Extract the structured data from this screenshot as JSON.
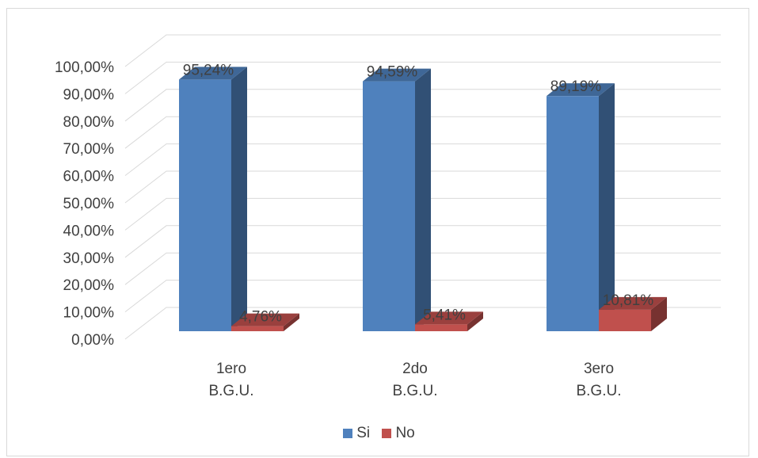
{
  "chart_data": {
    "type": "bar",
    "style": "3d-clustered-column",
    "categories": [
      "1ero\nB.G.U.",
      "2do\nB.G.U.",
      "3ero\nB.G.U."
    ],
    "series": [
      {
        "name": "Si",
        "color": "#4f81bd",
        "values": [
          95.24,
          94.59,
          89.19
        ],
        "labels": [
          "95,24%",
          "94,59%",
          "89,19%"
        ]
      },
      {
        "name": "No",
        "color": "#c0504d",
        "values": [
          4.76,
          5.41,
          10.81
        ],
        "labels": [
          "4,76%",
          "5,41%",
          "10,81%"
        ]
      }
    ],
    "yticks": [
      "0,00%",
      "10,00%",
      "20,00%",
      "30,00%",
      "40,00%",
      "50,00%",
      "60,00%",
      "70,00%",
      "80,00%",
      "90,00%",
      "100,00%"
    ],
    "ylim": [
      0,
      100
    ],
    "grid": true,
    "legend_position": "bottom"
  }
}
